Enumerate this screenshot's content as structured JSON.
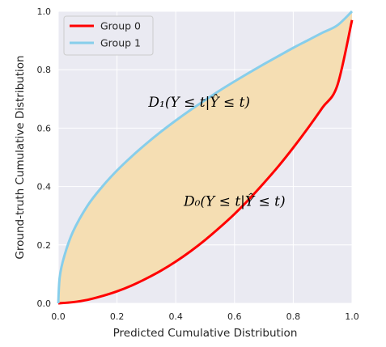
{
  "chart_data": {
    "type": "line",
    "title": "",
    "xlabel": "Predicted Cumulative Distribution",
    "ylabel": "Ground-truth Cumulative Distribution",
    "xlim": [
      0,
      1
    ],
    "ylim": [
      0,
      1
    ],
    "grid": true,
    "legend_placement": "top-left",
    "xticks": [
      "0.0",
      "0.2",
      "0.4",
      "0.6",
      "0.8",
      "1.0"
    ],
    "yticks": [
      "0.0",
      "0.2",
      "0.4",
      "0.6",
      "0.8",
      "1.0"
    ],
    "series": [
      {
        "name": "Group 0",
        "color": "#ff0000",
        "x": [
          0,
          0.05,
          0.1,
          0.15,
          0.2,
          0.25,
          0.3,
          0.35,
          0.4,
          0.45,
          0.5,
          0.55,
          0.6,
          0.65,
          0.7,
          0.75,
          0.8,
          0.85,
          0.9,
          0.95,
          1.0
        ],
        "y": [
          0,
          0.004,
          0.012,
          0.025,
          0.041,
          0.061,
          0.085,
          0.112,
          0.143,
          0.178,
          0.217,
          0.26,
          0.306,
          0.357,
          0.412,
          0.47,
          0.533,
          0.6,
          0.671,
          0.746,
          0.97
        ]
      },
      {
        "name": "Group 1",
        "color": "#87ceeb",
        "x": [
          0,
          0.005,
          0.02,
          0.05,
          0.1,
          0.15,
          0.2,
          0.25,
          0.3,
          0.35,
          0.4,
          0.45,
          0.5,
          0.55,
          0.6,
          0.65,
          0.7,
          0.75,
          0.8,
          0.85,
          0.9,
          0.95,
          1.0
        ],
        "y": [
          0,
          0.09,
          0.16,
          0.245,
          0.335,
          0.4,
          0.455,
          0.503,
          0.547,
          0.588,
          0.626,
          0.662,
          0.696,
          0.729,
          0.76,
          0.79,
          0.819,
          0.847,
          0.875,
          0.901,
          0.927,
          0.952,
          1.0
        ]
      }
    ],
    "fill_between": {
      "lower": "Group 0",
      "upper": "Group 1",
      "color": "#f5deb3"
    },
    "annotations": [
      {
        "text": "D₁(Y ≤ t|Ŷ ≤ t)",
        "x": 0.48,
        "y": 0.69
      },
      {
        "text": "D₀(Y ≤ t|Ŷ ≤ t)",
        "x": 0.6,
        "y": 0.35
      }
    ]
  }
}
